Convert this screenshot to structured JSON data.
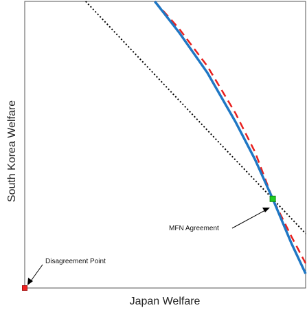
{
  "chart_data": {
    "type": "line",
    "title": "",
    "xlabel": "Japan Welfare",
    "ylabel": "South Korea Welfare",
    "xlim": [
      0,
      1
    ],
    "ylim": [
      0,
      1
    ],
    "grid": false,
    "legend": "none",
    "series": [
      {
        "style": "solid",
        "color": "#1f77c4",
        "points": [
          [
            0.463,
            1.0
          ],
          [
            0.55,
            0.891
          ],
          [
            0.65,
            0.751
          ],
          [
            0.75,
            0.58
          ],
          [
            0.82,
            0.448
          ],
          [
            0.883,
            0.311
          ],
          [
            0.95,
            0.155
          ],
          [
            1.0,
            0.05
          ]
        ]
      },
      {
        "style": "dashed",
        "color": "#e8201e",
        "points": [
          [
            0.463,
            1.0
          ],
          [
            0.55,
            0.904
          ],
          [
            0.65,
            0.774
          ],
          [
            0.75,
            0.61
          ],
          [
            0.82,
            0.474
          ],
          [
            0.883,
            0.311
          ],
          [
            0.95,
            0.179
          ],
          [
            1.0,
            0.086
          ]
        ]
      },
      {
        "style": "dotted",
        "color": "#000000",
        "points": [
          [
            0.217,
            1.0
          ],
          [
            0.5,
            0.706
          ],
          [
            0.75,
            0.447
          ],
          [
            0.883,
            0.311
          ],
          [
            1.0,
            0.19
          ]
        ]
      }
    ],
    "points": [
      {
        "name": "MFN Agreement",
        "x": 0.883,
        "y": 0.311,
        "color": "#22cc22"
      },
      {
        "name": "Disagreement Point",
        "x": 0.0,
        "y": 0.0,
        "color": "#ee2222"
      }
    ]
  }
}
